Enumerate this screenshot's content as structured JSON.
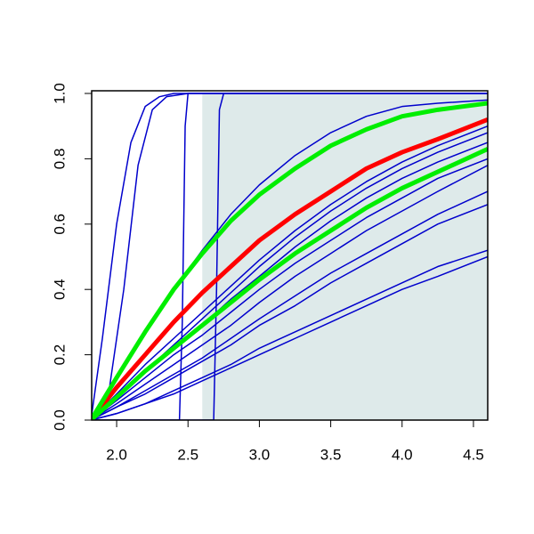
{
  "chart_data": {
    "type": "line",
    "x": [
      1.82,
      2.0,
      2.2,
      2.4,
      2.6,
      2.8,
      3.0,
      3.25,
      3.5,
      3.75,
      4.0,
      4.25,
      4.6
    ],
    "xlim": [
      1.825,
      4.6
    ],
    "ylim": [
      0,
      1
    ],
    "xticks": [
      {
        "value": 2.0,
        "label": "2.0"
      },
      {
        "value": 2.5,
        "label": "2.5"
      },
      {
        "value": 3.0,
        "label": "3.0"
      },
      {
        "value": 3.5,
        "label": "3.5"
      },
      {
        "value": 4.0,
        "label": "4.0"
      },
      {
        "value": 4.5,
        "label": "4.5"
      }
    ],
    "yticks": [
      {
        "value": 0,
        "label": "0.0"
      },
      {
        "value": 0.2,
        "label": "0.2"
      },
      {
        "value": 0.4,
        "label": "0.4"
      },
      {
        "value": 0.6,
        "label": "0.6"
      },
      {
        "value": 0.8,
        "label": "0.8"
      },
      {
        "value": 1,
        "label": "1.0"
      }
    ],
    "shaded_region": {
      "xlim": [
        2.6,
        4.6
      ],
      "color": "#deeaea"
    },
    "series": [
      {
        "color": "#0000cc",
        "width": 1.5,
        "x": [
          1.82,
          1.9,
          2.0,
          2.1,
          2.2,
          2.3,
          2.4,
          4.6
        ],
        "values": [
          0,
          0.25,
          0.6,
          0.85,
          0.96,
          0.99,
          1,
          1
        ]
      },
      {
        "color": "#0000cc",
        "width": 1.5,
        "x": [
          1.82,
          1.95,
          2.05,
          2.15,
          2.25,
          2.35,
          2.5,
          4.6
        ],
        "values": [
          0,
          0.1,
          0.4,
          0.78,
          0.95,
          0.99,
          1,
          1
        ]
      },
      {
        "color": "#0000cc",
        "width": 1.5,
        "x": [
          1.82,
          2.44,
          2.46,
          2.48,
          2.5,
          4.6
        ],
        "values": [
          0,
          0,
          0.3,
          0.9,
          1,
          1
        ]
      },
      {
        "color": "#0000cc",
        "width": 1.5,
        "x": [
          1.82,
          2.68,
          2.7,
          2.72,
          2.75,
          4.6
        ],
        "values": [
          0,
          0,
          0.4,
          0.95,
          1,
          1
        ]
      },
      {
        "color": "#0000cc",
        "width": 1.5,
        "values": [
          0,
          0.13,
          0.27,
          0.4,
          0.52,
          0.63,
          0.72,
          0.81,
          0.88,
          0.93,
          0.96,
          0.97,
          0.98
        ]
      },
      {
        "color": "#0000cc",
        "width": 1.5,
        "values": [
          0,
          0.08,
          0.17,
          0.25,
          0.33,
          0.41,
          0.49,
          0.58,
          0.66,
          0.73,
          0.79,
          0.84,
          0.9
        ]
      },
      {
        "color": "#0000cc",
        "width": 1.5,
        "values": [
          0,
          0.07,
          0.15,
          0.23,
          0.31,
          0.39,
          0.47,
          0.56,
          0.64,
          0.71,
          0.77,
          0.82,
          0.88
        ]
      },
      {
        "color": "#0000cc",
        "width": 1.5,
        "values": [
          0,
          0.07,
          0.15,
          0.22,
          0.29,
          0.37,
          0.44,
          0.53,
          0.61,
          0.68,
          0.74,
          0.79,
          0.85
        ]
      },
      {
        "color": "#0000cc",
        "width": 1.5,
        "values": [
          0,
          0.06,
          0.13,
          0.2,
          0.26,
          0.33,
          0.4,
          0.48,
          0.55,
          0.62,
          0.68,
          0.74,
          0.8
        ]
      },
      {
        "color": "#0000cc",
        "width": 1.5,
        "values": [
          0,
          0.05,
          0.11,
          0.17,
          0.23,
          0.29,
          0.36,
          0.44,
          0.51,
          0.58,
          0.64,
          0.7,
          0.78
        ]
      },
      {
        "color": "#0000cc",
        "width": 1.5,
        "values": [
          0,
          0.04,
          0.09,
          0.14,
          0.19,
          0.25,
          0.31,
          0.38,
          0.45,
          0.51,
          0.57,
          0.63,
          0.7
        ]
      },
      {
        "color": "#0000cc",
        "width": 1.5,
        "values": [
          0,
          0.04,
          0.08,
          0.13,
          0.18,
          0.23,
          0.29,
          0.35,
          0.42,
          0.48,
          0.54,
          0.6,
          0.66
        ]
      },
      {
        "color": "#0000cc",
        "width": 1.5,
        "values": [
          0,
          0.02,
          0.05,
          0.09,
          0.13,
          0.17,
          0.22,
          0.27,
          0.32,
          0.37,
          0.42,
          0.47,
          0.52
        ]
      },
      {
        "color": "#0000cc",
        "width": 1.5,
        "values": [
          0,
          0.02,
          0.05,
          0.08,
          0.12,
          0.16,
          0.2,
          0.25,
          0.3,
          0.35,
          0.4,
          0.44,
          0.5
        ]
      },
      {
        "color": "#ff0000",
        "width": 5,
        "values": [
          0,
          0.1,
          0.2,
          0.3,
          0.39,
          0.47,
          0.55,
          0.63,
          0.7,
          0.77,
          0.82,
          0.86,
          0.92
        ]
      },
      {
        "color": "#00ee00",
        "width": 5,
        "values": [
          0,
          0.13,
          0.27,
          0.4,
          0.51,
          0.61,
          0.69,
          0.77,
          0.84,
          0.89,
          0.93,
          0.95,
          0.97
        ]
      },
      {
        "color": "#00ee00",
        "width": 5,
        "values": [
          0,
          0.07,
          0.15,
          0.22,
          0.29,
          0.36,
          0.43,
          0.51,
          0.58,
          0.65,
          0.71,
          0.76,
          0.83
        ]
      }
    ]
  }
}
